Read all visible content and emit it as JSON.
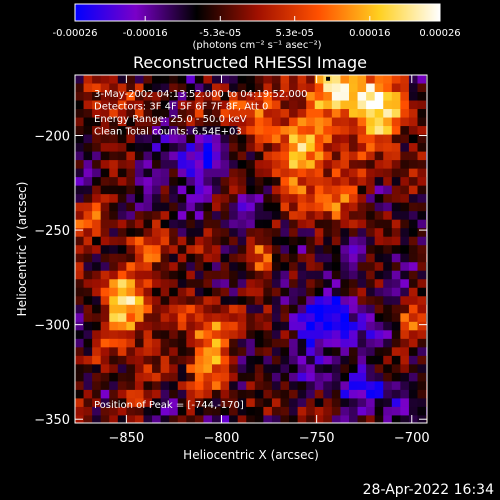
{
  "chart_data": {
    "type": "heatmap",
    "title": "Reconstructed RHESSI Image",
    "colorbar": {
      "ticks": [
        "-0.00026",
        "-0.00016",
        "-5.3e-05",
        "5.3e-05",
        "0.00016",
        "0.00026"
      ],
      "range": [
        -0.00026,
        0.00026
      ],
      "units_text": "(photons cm⁻² s⁻¹ asec⁻²)",
      "colors": [
        "#0000ff",
        "#7a00c8",
        "#000000",
        "#a01000",
        "#ff5000",
        "#ffd020",
        "#ffffff"
      ]
    },
    "xlabel": "Heliocentric X (arcsec)",
    "ylabel": "Heliocentric Y (arcsec)",
    "xlim": [
      -877,
      -692
    ],
    "ylim": [
      -352,
      -168
    ],
    "x_ticks": [
      -850,
      -800,
      -750,
      -700
    ],
    "y_ticks": [
      -200,
      -250,
      -300,
      -350
    ],
    "info_lines": [
      "3-May-2002 04:13:52.000 to 04:19:52.000",
      "Detectors: 3F 4F 5F 6F 7F 8F, Att 0",
      "Energy Range: 25.0 - 50.0 keV",
      "Clean     Total counts: 6.54E+03"
    ],
    "peak_label": "Position of Peak = [-744,-170]",
    "peak": [
      -744,
      -170
    ],
    "sources": [
      {
        "x": -730,
        "y": -178,
        "rx": 22,
        "ry": 16,
        "amp": 1.0
      },
      {
        "x": -760,
        "y": -208,
        "rx": 20,
        "ry": 30,
        "amp": 0.75
      },
      {
        "x": -740,
        "y": -230,
        "rx": 15,
        "ry": 12,
        "amp": 0.5
      },
      {
        "x": -715,
        "y": -195,
        "rx": 14,
        "ry": 18,
        "amp": 0.7
      },
      {
        "x": -790,
        "y": -185,
        "rx": 16,
        "ry": 10,
        "amp": 0.55
      },
      {
        "x": -850,
        "y": -292,
        "rx": 14,
        "ry": 22,
        "amp": 0.95
      },
      {
        "x": -808,
        "y": -312,
        "rx": 12,
        "ry": 22,
        "amp": 0.85
      },
      {
        "x": -835,
        "y": -262,
        "rx": 12,
        "ry": 10,
        "amp": 0.55
      },
      {
        "x": -870,
        "y": -245,
        "rx": 10,
        "ry": 12,
        "amp": 0.5
      },
      {
        "x": -855,
        "y": -185,
        "rx": 12,
        "ry": 12,
        "amp": 0.5
      },
      {
        "x": -780,
        "y": -262,
        "rx": 10,
        "ry": 9,
        "amp": 0.45
      },
      {
        "x": -775,
        "y": -290,
        "rx": 8,
        "ry": 10,
        "amp": 0.4
      },
      {
        "x": -700,
        "y": -300,
        "rx": 10,
        "ry": 10,
        "amp": 0.45
      },
      {
        "x": -845,
        "y": -340,
        "rx": 10,
        "ry": 8,
        "amp": 0.35
      },
      {
        "x": -745,
        "y": -300,
        "rx": 20,
        "ry": 20,
        "amp": -0.7
      },
      {
        "x": -815,
        "y": -215,
        "rx": 18,
        "ry": 14,
        "amp": -0.55
      },
      {
        "x": -720,
        "y": -335,
        "rx": 16,
        "ry": 12,
        "amp": -0.5
      },
      {
        "x": -780,
        "y": -235,
        "rx": 14,
        "ry": 12,
        "amp": -0.4
      }
    ]
  },
  "footer_timestamp": "28-Apr-2022 16:34"
}
